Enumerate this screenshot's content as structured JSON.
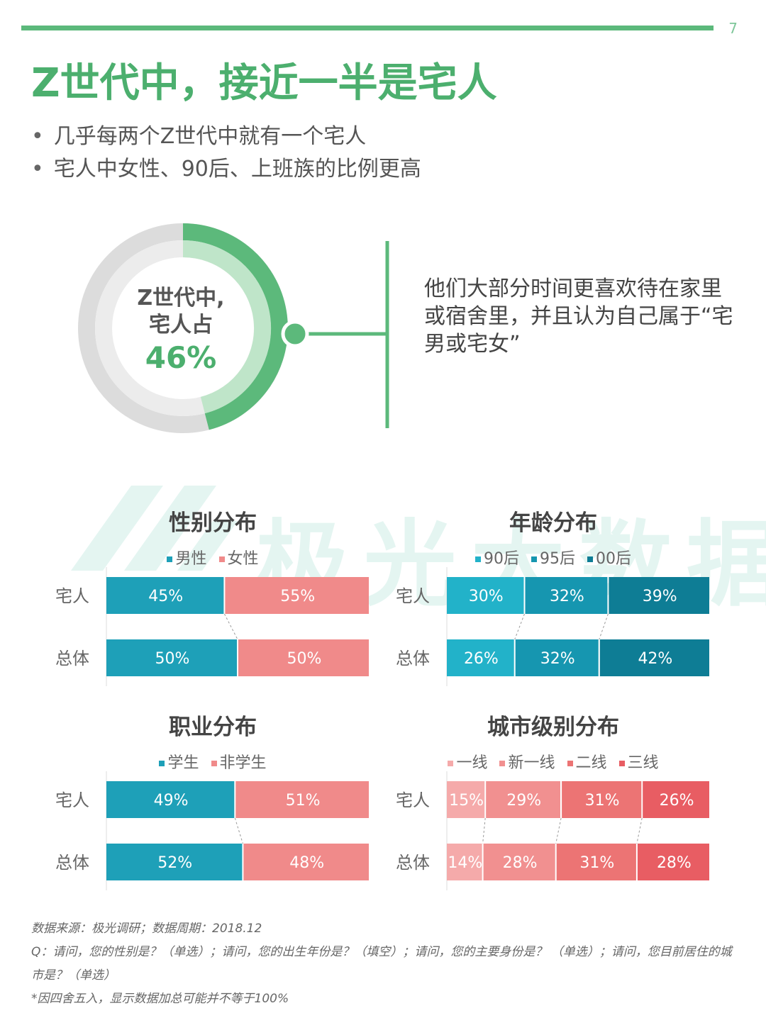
{
  "page_number": "7",
  "headline": "Z世代中，接近一半是宅人",
  "bullets": [
    "几乎每两个Z世代中就有一个宅人",
    "宅人中女性、90后、上班族的比例更高"
  ],
  "donut": {
    "line1": "Z世代中,",
    "line2": "宅人占",
    "percent_label": "46%",
    "value": 46,
    "description": "他们大部分时间更喜欢待在家里或宿舍里，并且认为自己属于“宅男或宅女”"
  },
  "watermark": "极光大数据",
  "colors": {
    "green": "#4caf6e",
    "light_green": "#a8ddb7",
    "grey": "#d9d9d9"
  },
  "chart_data": [
    {
      "type": "bar",
      "stacked": true,
      "orientation": "horizontal",
      "title": "性别分布",
      "categories": [
        "宅人",
        "总体"
      ],
      "series": [
        {
          "name": "男性",
          "values": [
            45,
            50
          ],
          "labels": [
            "45%",
            "50%"
          ],
          "color": "#1ea0b8"
        },
        {
          "name": "女性",
          "values": [
            55,
            50
          ],
          "labels": [
            "55%",
            "50%"
          ],
          "color": "#f08a8a"
        }
      ]
    },
    {
      "type": "bar",
      "stacked": true,
      "orientation": "horizontal",
      "title": "年龄分布",
      "categories": [
        "宅人",
        "总体"
      ],
      "series": [
        {
          "name": "90后",
          "values": [
            30,
            26
          ],
          "labels": [
            "30%",
            "26%"
          ],
          "color": "#22b2c9"
        },
        {
          "name": "95后",
          "values": [
            32,
            32
          ],
          "labels": [
            "32%",
            "32%"
          ],
          "color": "#1696b0"
        },
        {
          "name": "00后",
          "values": [
            39,
            42
          ],
          "labels": [
            "39%",
            "42%"
          ],
          "color": "#0e7d95"
        }
      ]
    },
    {
      "type": "bar",
      "stacked": true,
      "orientation": "horizontal",
      "title": "职业分布",
      "categories": [
        "宅人",
        "总体"
      ],
      "series": [
        {
          "name": "学生",
          "values": [
            49,
            52
          ],
          "labels": [
            "49%",
            "52%"
          ],
          "color": "#1ea0b8"
        },
        {
          "name": "非学生",
          "values": [
            51,
            48
          ],
          "labels": [
            "51%",
            "48%"
          ],
          "color": "#f08a8a"
        }
      ]
    },
    {
      "type": "bar",
      "stacked": true,
      "orientation": "horizontal",
      "title": "城市级别分布",
      "categories": [
        "宅人",
        "总体"
      ],
      "series": [
        {
          "name": "一线",
          "values": [
            15,
            14
          ],
          "labels": [
            "15%",
            "14%"
          ],
          "color": "#f5aaaa"
        },
        {
          "name": "新一线",
          "values": [
            29,
            28
          ],
          "labels": [
            "29%",
            "28%"
          ],
          "color": "#f19090"
        },
        {
          "name": "二线",
          "values": [
            31,
            31
          ],
          "labels": [
            "31%",
            "31%"
          ],
          "color": "#ec7474"
        },
        {
          "name": "三线",
          "values": [
            26,
            28
          ],
          "labels": [
            "26%",
            "28%"
          ],
          "color": "#e85d63"
        }
      ]
    }
  ],
  "footer": {
    "source": "数据来源：极光调研；数据周期：2018.12",
    "question": "Q：请问，您的性别是？（单选）；请问，您的出生年份是？（填空）；请问，您的主要身份是？ （单选）；请问，您目前居住的城市是？（单选）",
    "note": "*因四舍五入，显示数据加总可能并不等于100%"
  }
}
